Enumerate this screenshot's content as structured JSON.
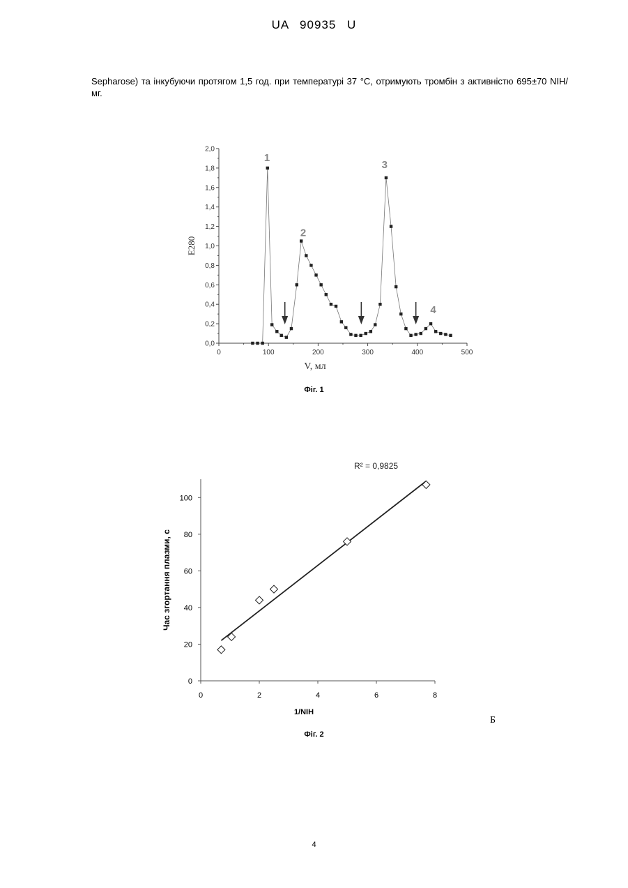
{
  "header": {
    "doc_id": "UA 90935 U"
  },
  "paragraph": "Sepharose) та інкубуючи протягом 1,5 год. при температурі 37 °C, отримують тромбін з активністю 695±70 NIH/мг.",
  "fig1": {
    "caption": "Фіг. 1",
    "chart_data": {
      "type": "line",
      "xlabel": "V, мл",
      "ylabel": "E280",
      "xlim": [
        0,
        500
      ],
      "ylim": [
        0,
        2.0
      ],
      "xticks": [
        "0",
        "100",
        "200",
        "300",
        "400",
        "500"
      ],
      "yticks": [
        "0,0",
        "0,2",
        "0,4",
        "0,6",
        "0,8",
        "1,0",
        "1,2",
        "1,4",
        "1,6",
        "1,8",
        "2,0"
      ],
      "peak_labels": [
        {
          "label": "1",
          "x": 97,
          "y": 1.87
        },
        {
          "label": "2",
          "x": 170,
          "y": 1.1
        },
        {
          "label": "3",
          "x": 334,
          "y": 1.8
        },
        {
          "label": "4",
          "x": 432,
          "y": 0.31
        }
      ],
      "arrows_x": [
        133,
        287,
        397
      ],
      "x": [
        68,
        78,
        88,
        98,
        107,
        117,
        126,
        136,
        146,
        157,
        166,
        176,
        186,
        196,
        206,
        216,
        226,
        236,
        247,
        256,
        266,
        276,
        286,
        296,
        306,
        315,
        325,
        337,
        347,
        357,
        367,
        377,
        387,
        397,
        407,
        417,
        427,
        437,
        447,
        457,
        467
      ],
      "y": [
        0.0,
        0.0,
        0.0,
        1.8,
        0.19,
        0.12,
        0.08,
        0.06,
        0.15,
        0.6,
        1.05,
        0.9,
        0.8,
        0.7,
        0.6,
        0.5,
        0.4,
        0.38,
        0.22,
        0.16,
        0.09,
        0.08,
        0.08,
        0.1,
        0.12,
        0.19,
        0.4,
        1.7,
        1.2,
        0.58,
        0.3,
        0.15,
        0.08,
        0.09,
        0.1,
        0.15,
        0.2,
        0.12,
        0.1,
        0.09,
        0.08
      ]
    }
  },
  "fig2": {
    "caption": "Фіг. 2",
    "r2_label": "R² = 0,9825",
    "chart_data": {
      "type": "scatter",
      "xlabel": "1/NIH",
      "ylabel": "Час згортання плазми, с",
      "xlim": [
        0,
        8
      ],
      "ylim": [
        0,
        110
      ],
      "xticks": [
        "0",
        "2",
        "4",
        "6",
        "8"
      ],
      "yticks": [
        "0",
        "20",
        "40",
        "60",
        "80",
        "100"
      ],
      "points": [
        {
          "x": 0.7,
          "y": 17
        },
        {
          "x": 1.05,
          "y": 24
        },
        {
          "x": 2.0,
          "y": 44
        },
        {
          "x": 2.5,
          "y": 50
        },
        {
          "x": 5.0,
          "y": 76
        },
        {
          "x": 7.7,
          "y": 107
        }
      ],
      "trendline": {
        "x": [
          0.7,
          7.7
        ],
        "y": [
          22,
          109
        ]
      }
    }
  },
  "side_letter": "Б",
  "page_number": "4"
}
